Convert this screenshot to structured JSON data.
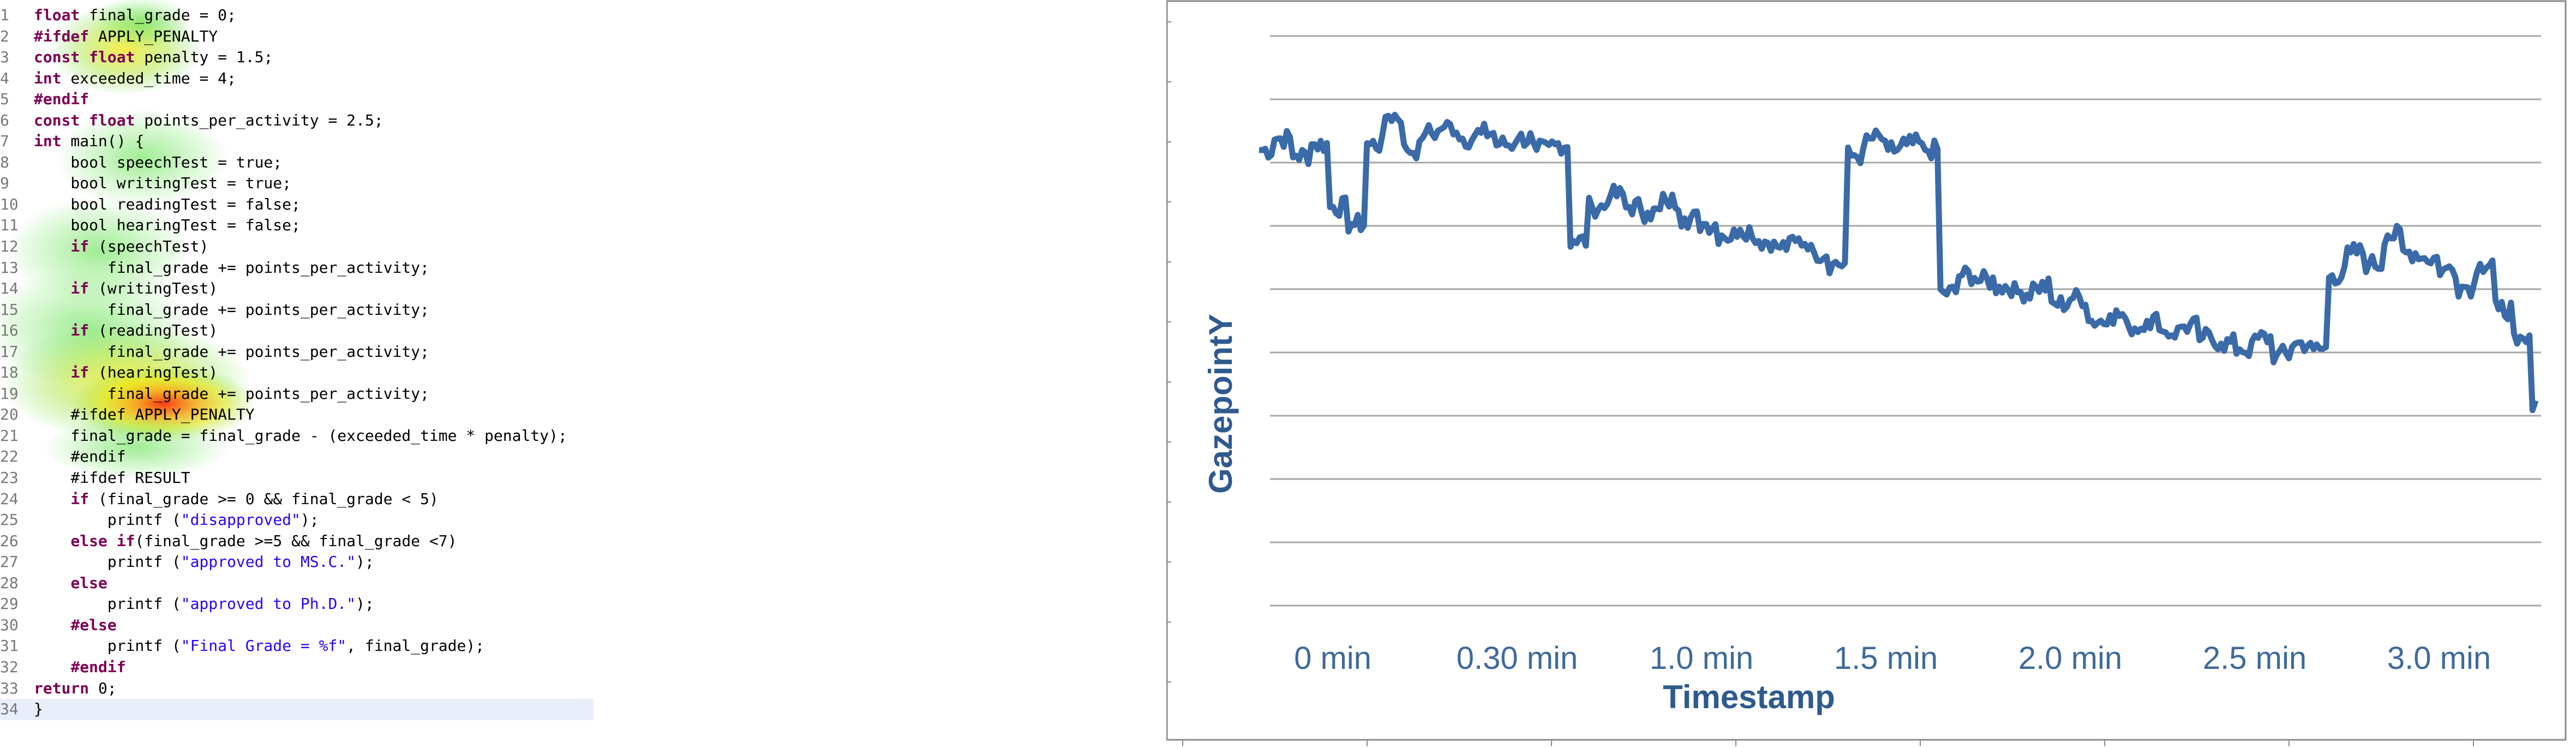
{
  "code": {
    "lines": [
      {
        "n": "1",
        "html": "<span class='kw'>float</span> final_grade = 0;"
      },
      {
        "n": "2",
        "html": "<span class='mac'>#ifdef</span> APPLY_PENALTY"
      },
      {
        "n": "3",
        "html": "<span class='kw'>const float</span> penalty = 1.5;"
      },
      {
        "n": "4",
        "html": "<span class='kw'>int</span> exceeded_time = 4;"
      },
      {
        "n": "5",
        "html": "<span class='mac'>#endif</span>"
      },
      {
        "n": "6",
        "html": "<span class='kw'>const float</span> points_per_activity = 2.5;"
      },
      {
        "n": "7",
        "html": "<span class='kw'>int</span> main() {"
      },
      {
        "n": "8",
        "html": "    bool speechTest = true;"
      },
      {
        "n": "9",
        "html": "    bool writingTest = true;"
      },
      {
        "n": "10",
        "html": "    bool readingTest = false;"
      },
      {
        "n": "11",
        "html": "    bool hearingTest = false;"
      },
      {
        "n": "12",
        "html": "    <span class='kw'>if</span> (speechTest)"
      },
      {
        "n": "13",
        "html": "        final_grade += points_per_activity;"
      },
      {
        "n": "14",
        "html": "    <span class='kw'>if</span> (writingTest)"
      },
      {
        "n": "15",
        "html": "        final_grade += points_per_activity;"
      },
      {
        "n": "16",
        "html": "    <span class='kw'>if</span> (readingTest)"
      },
      {
        "n": "17",
        "html": "        final_grade += points_per_activity;"
      },
      {
        "n": "18",
        "html": "    <span class='kw'>if</span> (hearingTest)"
      },
      {
        "n": "19",
        "html": "        final_grade += points_per_activity;"
      },
      {
        "n": "20",
        "html": "    #ifdef APPLY_PENALTY"
      },
      {
        "n": "21",
        "html": "    final_grade = final_grade - (exceeded_time * penalty);"
      },
      {
        "n": "22",
        "html": "    #endif"
      },
      {
        "n": "23",
        "html": "    #ifdef RESULT"
      },
      {
        "n": "24",
        "html": "    <span class='kw'>if</span> (final_grade >= 0 &amp;&amp; final_grade < 5)"
      },
      {
        "n": "25",
        "html": "        printf (<span class='str'>\"disapproved\"</span>);"
      },
      {
        "n": "26",
        "html": "    <span class='kw'>else if</span>(final_grade >=5 &amp;&amp; final_grade <7)"
      },
      {
        "n": "27",
        "html": "        printf (<span class='str'>\"approved to MS.C.\"</span>);"
      },
      {
        "n": "28",
        "html": "    <span class='kw'>else</span>"
      },
      {
        "n": "29",
        "html": "        printf (<span class='str'>\"approved to Ph.D.\"</span>);"
      },
      {
        "n": "30",
        "html": "    <span class='mac'>#else</span>"
      },
      {
        "n": "31",
        "html": "        printf (<span class='str'>\"Final Grade = %f\"</span>, final_grade);"
      },
      {
        "n": "32",
        "html": "    <span class='mac'>#endif</span>"
      },
      {
        "n": "33",
        "html": "<span class='kw'>return</span> 0;"
      },
      {
        "n": "34",
        "html": "}"
      }
    ]
  },
  "colors": {
    "line": "#3a6aa8",
    "grid": "#a6a6a6",
    "frame": "#8a8a8a",
    "tick_text": "#3f6a9c",
    "axis_title": "#2e5a8e"
  },
  "chart_data": {
    "type": "line",
    "xlabel": "Timestamp",
    "ylabel": "GazepointY",
    "categories": [
      "0 min",
      "0.30 min",
      "1.0 min",
      "1.5 min",
      "2.0 min",
      "2.5 min",
      "3.0 min"
    ],
    "grid": true,
    "x": [
      0.0,
      0.05,
      0.1,
      0.15,
      0.2,
      0.25,
      0.3,
      0.35,
      0.4,
      0.45,
      0.5,
      0.55,
      0.6,
      0.65,
      0.7,
      0.75,
      0.8,
      0.85,
      0.9,
      0.95,
      1.0,
      1.05,
      1.1,
      1.15,
      1.2,
      1.25,
      1.3,
      1.35,
      1.4,
      1.45,
      1.5,
      1.55,
      1.6,
      1.65,
      1.7,
      1.75,
      1.8,
      1.85,
      1.9,
      1.95,
      2.0,
      2.05,
      2.1,
      2.15,
      2.2,
      2.25,
      2.3,
      2.35,
      2.4,
      2.45,
      2.5,
      2.55,
      2.6,
      2.65,
      2.7,
      2.75,
      2.8,
      2.85,
      2.9,
      2.95,
      3.0,
      3.05,
      3.1,
      3.15,
      3.2,
      3.25,
      3.3,
      3.35,
      3.4,
      3.45
    ],
    "series": [
      {
        "values": [
          8.0,
          8.2,
          7.9,
          8.1,
          7.0,
          6.7,
          8.1,
          8.6,
          8.0,
          8.3,
          8.4,
          8.2,
          8.3,
          8.1,
          8.2,
          8.0,
          8.1,
          6.4,
          7.0,
          7.2,
          7.0,
          6.9,
          7.1,
          6.8,
          6.7,
          6.5,
          6.6,
          6.4,
          6.3,
          6.4,
          6.2,
          6.0,
          7.9,
          8.2,
          8.0,
          8.1,
          8.0,
          5.5,
          5.8,
          5.7,
          5.6,
          5.5,
          5.6,
          5.3,
          5.4,
          5.0,
          5.1,
          4.9,
          5.0,
          4.8,
          4.9,
          4.7,
          4.6,
          4.5,
          4.7,
          4.4,
          4.6,
          4.5,
          5.8,
          6.2,
          6.0,
          6.5,
          6.2,
          6.1,
          5.9,
          5.6,
          6.0,
          5.2,
          4.6,
          3.6
        ]
      }
    ]
  }
}
